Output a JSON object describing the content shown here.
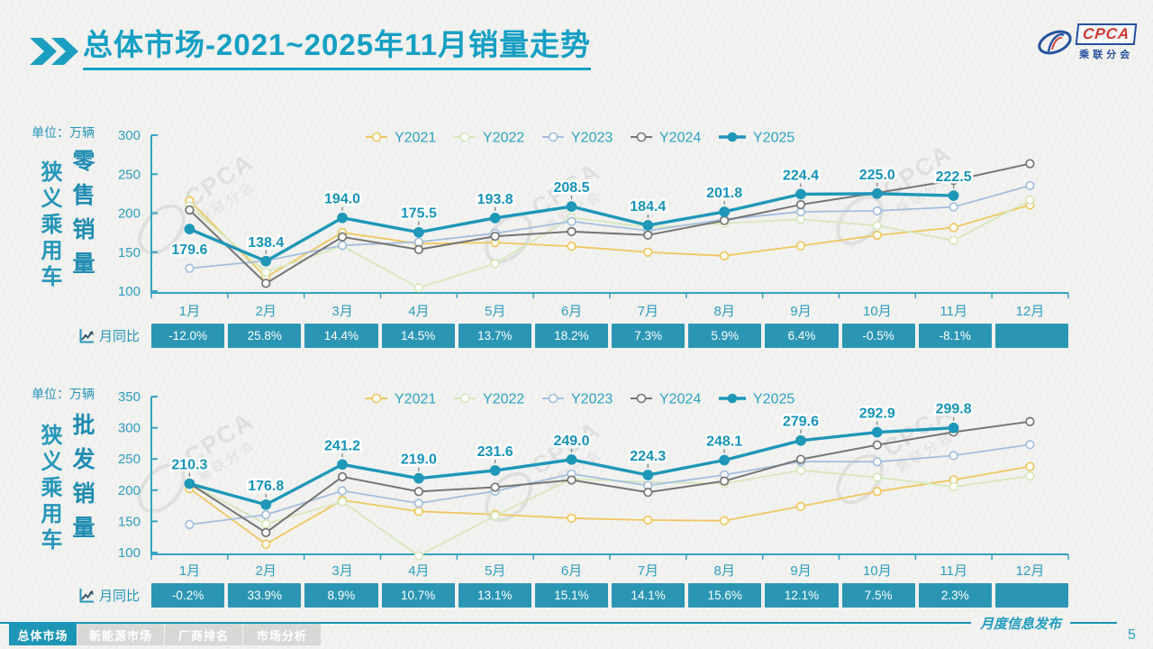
{
  "page": {
    "title": "总体市场-2021~2025年11月销量走势"
  },
  "logo": {
    "name": "CPCA",
    "subtitle": "乘联分会"
  },
  "watermark": {
    "line1": "CPCA",
    "line2": "乘联分会"
  },
  "footer": {
    "publication": "月度信息发布",
    "page_number": "5"
  },
  "nav": {
    "tabs": [
      {
        "label": "总体市场",
        "active": true
      },
      {
        "label": "新能源市场",
        "active": false
      },
      {
        "label": "厂商排名",
        "active": false
      },
      {
        "label": "市场分析",
        "active": false
      }
    ]
  },
  "charts": [
    {
      "unit_label": "单位：万辆",
      "category_label": "狭义乘用车",
      "metric_label": "零售销量",
      "yoy_label": "月同比",
      "yoy_values": [
        "-12.0%",
        "25.8%",
        "14.4%",
        "14.5%",
        "13.7%",
        "18.2%",
        "7.3%",
        "5.9%",
        "6.4%",
        "-0.5%",
        "-8.1%",
        ""
      ]
    },
    {
      "unit_label": "单位：万辆",
      "category_label": "狭义乘用车",
      "metric_label": "批发销量",
      "yoy_label": "月同比",
      "yoy_values": [
        "-0.2%",
        "33.9%",
        "8.9%",
        "10.7%",
        "13.1%",
        "15.1%",
        "14.1%",
        "15.6%",
        "12.1%",
        "7.5%",
        "2.3%",
        ""
      ]
    }
  ],
  "chart_data": [
    {
      "type": "line",
      "title": "狭义乘用车零售销量",
      "ylabel": "万辆",
      "ylim": [
        100,
        300
      ],
      "ytick_step": 50,
      "grid": false,
      "legend_position": "top",
      "categories": [
        "1月",
        "2月",
        "3月",
        "4月",
        "5月",
        "6月",
        "7月",
        "8月",
        "9月",
        "10月",
        "11月",
        "12月"
      ],
      "series": [
        {
          "name": "Y2021",
          "color": "#f0c75f",
          "values": [
            216.0,
            117.9,
            175.2,
            160.8,
            162.3,
            157.5,
            150.0,
            145.3,
            158.2,
            171.7,
            181.6,
            210.5
          ]
        },
        {
          "name": "Y2022",
          "color": "#d6e8bb",
          "values": [
            209.2,
            124.6,
            157.9,
            104.2,
            135.4,
            194.4,
            181.8,
            187.1,
            192.2,
            184.0,
            164.9,
            216.9
          ]
        },
        {
          "name": "Y2023",
          "color": "#a4bedf",
          "values": [
            129.3,
            139.0,
            158.7,
            163.0,
            174.2,
            189.4,
            177.5,
            192.0,
            201.8,
            203.0,
            208.0,
            235.4
          ]
        },
        {
          "name": "Y2024",
          "color": "#757575",
          "values": [
            204.1,
            110.0,
            169.6,
            153.3,
            170.4,
            176.4,
            171.9,
            190.6,
            210.9,
            226.1,
            242.1,
            263.5
          ]
        },
        {
          "name": "Y2025",
          "color": "#1e97b8",
          "emphasis": true,
          "labeled": true,
          "values": [
            179.6,
            138.4,
            194.0,
            175.5,
            193.8,
            208.5,
            184.4,
            201.8,
            224.4,
            225.0,
            222.5
          ]
        }
      ]
    },
    {
      "type": "line",
      "title": "狭义乘用车批发销量",
      "ylabel": "万辆",
      "ylim": [
        100,
        350
      ],
      "ytick_step": 50,
      "grid": false,
      "legend_position": "top",
      "categories": [
        "1月",
        "2月",
        "3月",
        "4月",
        "5月",
        "6月",
        "7月",
        "8月",
        "9月",
        "10月",
        "11月",
        "12月"
      ],
      "series": [
        {
          "name": "Y2021",
          "color": "#f0c75f",
          "values": [
            202.5,
            113.5,
            184.0,
            166.0,
            161.0,
            155.0,
            152.0,
            151.0,
            174.0,
            198.0,
            216.5,
            238.0
          ]
        },
        {
          "name": "Y2022",
          "color": "#d6e8bb",
          "values": [
            211.0,
            146.0,
            181.5,
            94.6,
            159.0,
            218.0,
            213.0,
            210.5,
            232.0,
            220.5,
            205.5,
            222.5
          ]
        },
        {
          "name": "Y2023",
          "color": "#a4bedf",
          "values": [
            144.9,
            160.5,
            199.0,
            179.0,
            198.5,
            226.0,
            207.5,
            224.5,
            246.0,
            245.5,
            255.5,
            273.0
          ]
        },
        {
          "name": "Y2024",
          "color": "#757575",
          "values": [
            210.7,
            132.0,
            221.5,
            197.8,
            204.8,
            216.3,
            196.6,
            214.6,
            249.4,
            272.5,
            293.1,
            310.0
          ]
        },
        {
          "name": "Y2025",
          "color": "#1e97b8",
          "emphasis": true,
          "labeled": true,
          "values": [
            210.3,
            176.8,
            241.2,
            219.0,
            231.6,
            249.0,
            224.3,
            248.1,
            279.6,
            292.9,
            299.8
          ]
        }
      ]
    }
  ],
  "theme": {
    "accent": "#149fc4",
    "axis": "#35a3c2",
    "yoy_cell_bg": "#2b96b4",
    "nav_active_bg": "#1d95b5",
    "nav_inactive_bg": "#d8d8d6",
    "logo_blue": "#24519e",
    "logo_red": "#cf3a2e"
  }
}
